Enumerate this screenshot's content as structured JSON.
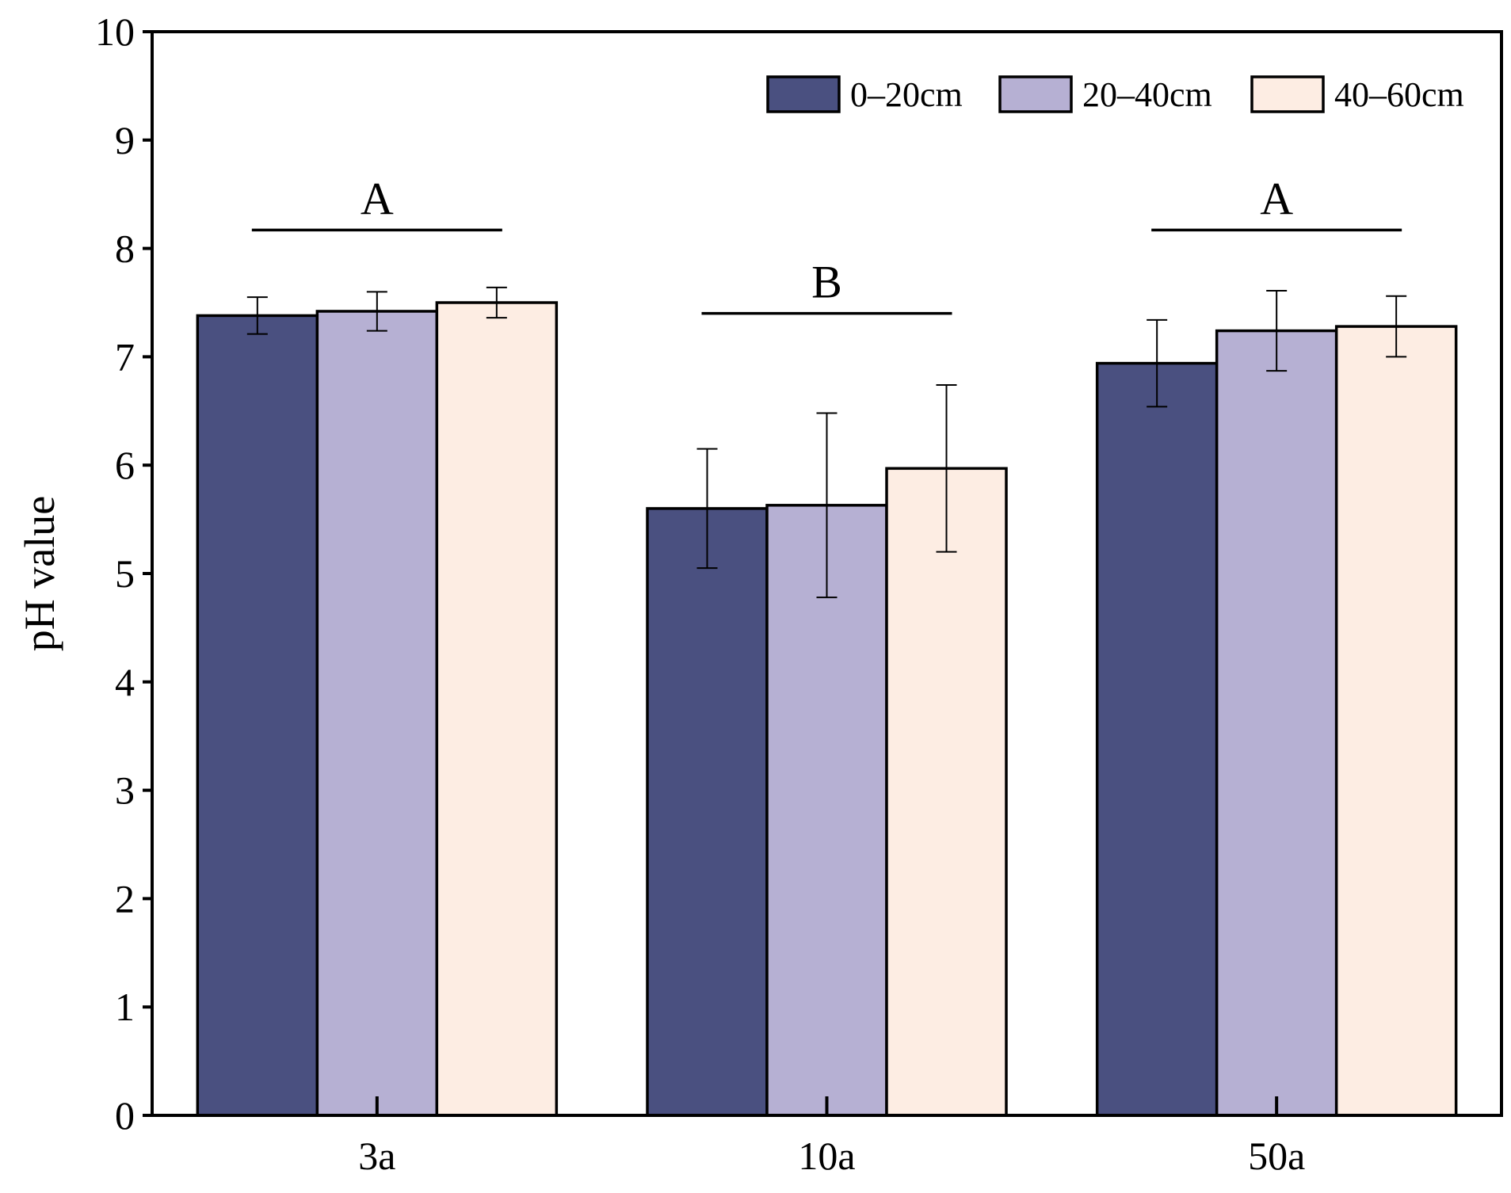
{
  "chart_data": {
    "type": "bar",
    "title": "",
    "xlabel": "",
    "ylabel": "pH value",
    "ylim": [
      0,
      10
    ],
    "yticks": [
      "0",
      "1",
      "2",
      "3",
      "4",
      "5",
      "6",
      "7",
      "8",
      "9",
      "10"
    ],
    "categories": [
      "3a",
      "10a",
      "50a"
    ],
    "series": [
      {
        "name": "0–20cm",
        "color": "#4A5080",
        "values": [
          7.38,
          5.6,
          6.94
        ],
        "errors": [
          0.17,
          0.55,
          0.4
        ]
      },
      {
        "name": "20–40cm",
        "color": "#B6B0D3",
        "values": [
          7.42,
          5.63,
          7.24
        ],
        "errors": [
          0.18,
          0.85,
          0.37
        ]
      },
      {
        "name": "40–60cm",
        "color": "#FDEDE3",
        "values": [
          7.5,
          5.97,
          7.28
        ],
        "errors": [
          0.14,
          0.77,
          0.28
        ]
      }
    ],
    "significance": [
      {
        "category": "3a",
        "label": "A",
        "level": 8.17
      },
      {
        "category": "10a",
        "label": "B",
        "level": 7.4
      },
      {
        "category": "50a",
        "label": "A",
        "level": 8.17
      }
    ],
    "legend_position": "top-right",
    "grid": false
  }
}
